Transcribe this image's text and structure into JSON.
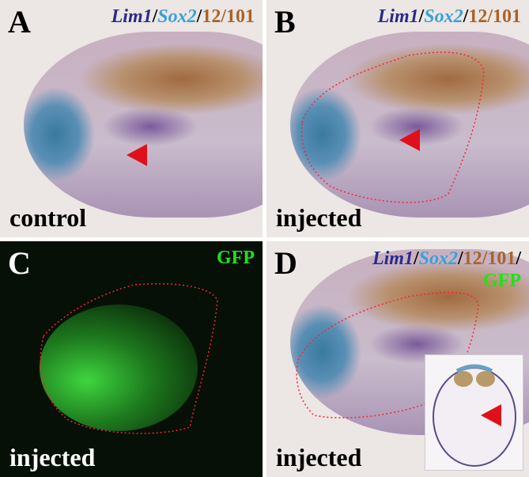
{
  "panels": [
    {
      "letter": "A",
      "label": "control",
      "legend": {
        "lim": "Lim1",
        "sep1": "/",
        "sox": "Sox2",
        "sep2": "/",
        "mab": "12/101"
      }
    },
    {
      "letter": "B",
      "label": "injected",
      "legend": {
        "lim": "Lim1",
        "sep1": "/",
        "sox": "Sox2",
        "sep2": "/",
        "mab": "12/101"
      }
    },
    {
      "letter": "C",
      "label": "injected",
      "legend": {
        "gfp": "GFP"
      }
    },
    {
      "letter": "D",
      "label": "injected",
      "legend": {
        "lim": "Lim1",
        "sep1": "/",
        "sox": "Sox2",
        "sep2": "/",
        "mab": "12/101",
        "sep3": "/",
        "gfp": "GFP"
      }
    }
  ],
  "colors": {
    "lim": "#2a2a8a",
    "sox": "#3aa0d8",
    "mab": "#a8642a",
    "gfp": "#20e020",
    "arrow": "#e0101a"
  }
}
